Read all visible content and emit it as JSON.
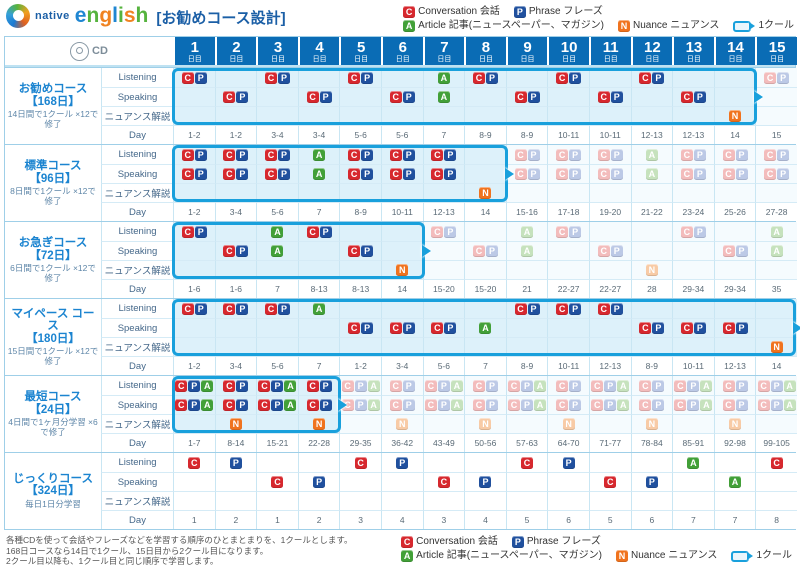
{
  "brand": {
    "native": "native",
    "english_letters": [
      {
        "ch": "e",
        "color": "#1f86d2"
      },
      {
        "ch": "n",
        "color": "#56b33e"
      },
      {
        "ch": "g",
        "color": "#f08321"
      },
      {
        "ch": "l",
        "color": "#1f86d2"
      },
      {
        "ch": "i",
        "color": "#56b33e"
      },
      {
        "ch": "s",
        "color": "#f08321"
      },
      {
        "ch": "h",
        "color": "#56b33e"
      }
    ]
  },
  "title": "[お勧めコース設計]",
  "legend": {
    "items": [
      {
        "code": "C",
        "en": "Conversation",
        "ja": "会話"
      },
      {
        "code": "P",
        "en": "Phrase",
        "ja": "フレーズ"
      },
      {
        "code": "A",
        "en": "Article",
        "ja": "記事(ニュースペーパー、マガジン)"
      },
      {
        "code": "N",
        "en": "Nuance",
        "ja": "ニュアンス"
      }
    ],
    "cycle_label": "1クール"
  },
  "icon_colors": {
    "C": "#d7282e",
    "P": "#20509e",
    "A": "#42a038",
    "N": "#f0731e",
    "C_faded": "#f3bcbc",
    "P_faded": "#bcc9e6",
    "A_faded": "#c6e2bd",
    "N_faded": "#f8cba6",
    "cycle_border": "#19a0dc",
    "header_blue": "#0a6cb5"
  },
  "table": {
    "cd_label": "CD",
    "day_suffix": "日目",
    "day_numbers": [
      "1",
      "2",
      "3",
      "4",
      "5",
      "6",
      "7",
      "8",
      "9",
      "10",
      "11",
      "12",
      "13",
      "14",
      "15"
    ],
    "row_labels": {
      "listening": "Listening",
      "speaking": "Speaking",
      "nuance": "ニュアンス解説",
      "day": "Day"
    },
    "courses": [
      {
        "name": "お勧めコース",
        "duration": "【168日】",
        "note": "14日間で1クール ×12で修了",
        "cycle_cols": 14,
        "rows": {
          "listening": [
            "CP",
            "",
            "CP",
            "",
            "CP",
            "",
            "A",
            "CP",
            "",
            "CP",
            "",
            "CP",
            "",
            "",
            "cp"
          ],
          "speaking": [
            "",
            "CP",
            "",
            "CP",
            "",
            "CP",
            "A",
            "",
            "CP",
            "",
            "CP",
            "",
            "CP",
            "",
            ""
          ],
          "nuance": [
            "",
            "",
            "",
            "",
            "",
            "",
            "",
            "",
            "",
            "",
            "",
            "",
            "",
            "N",
            ""
          ],
          "day": [
            "1-2",
            "1-2",
            "3-4",
            "3-4",
            "5-6",
            "5-6",
            "7",
            "8-9",
            "8-9",
            "10-11",
            "10-11",
            "12-13",
            "12-13",
            "14",
            "15"
          ]
        }
      },
      {
        "name": "標準コース",
        "duration": "【96日】",
        "note": "8日間で1クール ×12で修了",
        "cycle_cols": 8,
        "rows": {
          "listening": [
            "CP",
            "CP",
            "CP",
            "A",
            "CP",
            "CP",
            "CP",
            "",
            "cp",
            "cp",
            "cp",
            "a",
            "cp",
            "cp",
            "cp"
          ],
          "speaking": [
            "CP",
            "CP",
            "CP",
            "A",
            "CP",
            "CP",
            "CP",
            "",
            "cp",
            "cp",
            "cp",
            "a",
            "cp",
            "cp",
            "cp"
          ],
          "nuance": [
            "",
            "",
            "",
            "",
            "",
            "",
            "",
            "N",
            "",
            "",
            "",
            "",
            "",
            "",
            ""
          ],
          "day": [
            "1-2",
            "3-4",
            "5-6",
            "7",
            "8-9",
            "10-11",
            "12-13",
            "14",
            "15-16",
            "17-18",
            "19-20",
            "21-22",
            "23-24",
            "25-26",
            "27-28"
          ]
        }
      },
      {
        "name": "お急ぎコース",
        "duration": "【72日】",
        "note": "6日間で1クール ×12で修了",
        "cycle_cols": 6,
        "rows": {
          "listening": [
            "CP",
            "",
            "A",
            "CP",
            "",
            "",
            "cp",
            "",
            "a",
            "cp",
            "",
            "",
            "cp",
            "",
            "a"
          ],
          "speaking": [
            "",
            "CP",
            "A",
            "",
            "CP",
            "",
            "",
            "cp",
            "a",
            "",
            "cp",
            "",
            "",
            "cp",
            "a"
          ],
          "nuance": [
            "",
            "",
            "",
            "",
            "",
            "N",
            "",
            "",
            "",
            "",
            "",
            "n",
            "",
            "",
            ""
          ],
          "day": [
            "1-6",
            "1-6",
            "7",
            "8-13",
            "8-13",
            "14",
            "15-20",
            "15-20",
            "21",
            "22-27",
            "22-27",
            "28",
            "29-34",
            "29-34",
            "35"
          ]
        }
      },
      {
        "name": "マイペース コース",
        "duration": "【180日】",
        "note": "15日間で1クール ×12で修了",
        "cycle_cols": 15,
        "rows": {
          "listening": [
            "CP",
            "CP",
            "CP",
            "A",
            "",
            "",
            "",
            "",
            "CP",
            "CP",
            "CP",
            "",
            "",
            "",
            ""
          ],
          "speaking": [
            "",
            "",
            "",
            "",
            "CP",
            "CP",
            "CP",
            "A",
            "",
            "",
            "",
            "CP",
            "CP",
            "CP",
            ""
          ],
          "nuance": [
            "",
            "",
            "",
            "",
            "",
            "",
            "",
            "",
            "",
            "",
            "",
            "",
            "",
            "",
            "N"
          ],
          "day": [
            "1-2",
            "3-4",
            "5-6",
            "7",
            "1-2",
            "3-4",
            "5-6",
            "7",
            "8-9",
            "10-11",
            "12-13",
            "8-9",
            "10-11",
            "12-13",
            "14"
          ]
        }
      },
      {
        "name": "最短コース",
        "duration": "【24日】",
        "note": "4日間で1ヶ月分学習 ×6で修了",
        "cycle_cols": 4,
        "rows": {
          "listening": [
            "CPA",
            "CP",
            "CPA",
            "CP",
            "cpa",
            "cp",
            "cpa",
            "cp",
            "cpa",
            "cp",
            "cpa",
            "cp",
            "cpa",
            "cp",
            "cpa"
          ],
          "speaking": [
            "CPA",
            "CP",
            "CPA",
            "CP",
            "cpa",
            "cp",
            "cpa",
            "cp",
            "cpa",
            "cp",
            "cpa",
            "cp",
            "cpa",
            "cp",
            "cpa"
          ],
          "nuance": [
            "",
            "N",
            "",
            "N",
            "",
            "n",
            "",
            "n",
            "",
            "n",
            "",
            "n",
            "",
            "n",
            ""
          ],
          "day": [
            "1-7",
            "8-14",
            "15-21",
            "22-28",
            "29-35",
            "36-42",
            "43-49",
            "50-56",
            "57-63",
            "64-70",
            "71-77",
            "78-84",
            "85-91",
            "92-98",
            "99-105"
          ]
        }
      },
      {
        "name": "じっくりコース",
        "duration": "【324日】",
        "note": "毎日1日分学習",
        "cycle_cols": 0,
        "rows": {
          "listening": [
            "C",
            "P",
            "",
            "",
            "C",
            "P",
            "",
            "",
            "C",
            "P",
            "",
            "",
            "A",
            "",
            "C"
          ],
          "speaking": [
            "",
            "",
            "C",
            "P",
            "",
            "",
            "C",
            "P",
            "",
            "",
            "C",
            "P",
            "",
            "A",
            ""
          ],
          "nuance": [
            "",
            "",
            "",
            "",
            "",
            "",
            "",
            "",
            "",
            "",
            "",
            "",
            "",
            "",
            ""
          ],
          "day": [
            "1",
            "2",
            "1",
            "2",
            "3",
            "4",
            "3",
            "4",
            "5",
            "6",
            "5",
            "6",
            "7",
            "7",
            "8"
          ]
        }
      }
    ]
  },
  "footer": {
    "notes": [
      "各種CDを使って会話やフレーズなどを学習する順序のひとまとまりを、1クールとします。",
      "168日コースなら14日で1クール、15日目から2クール目になります。",
      "2クール目以降も、1クール目と同じ順序で学習します。"
    ]
  }
}
